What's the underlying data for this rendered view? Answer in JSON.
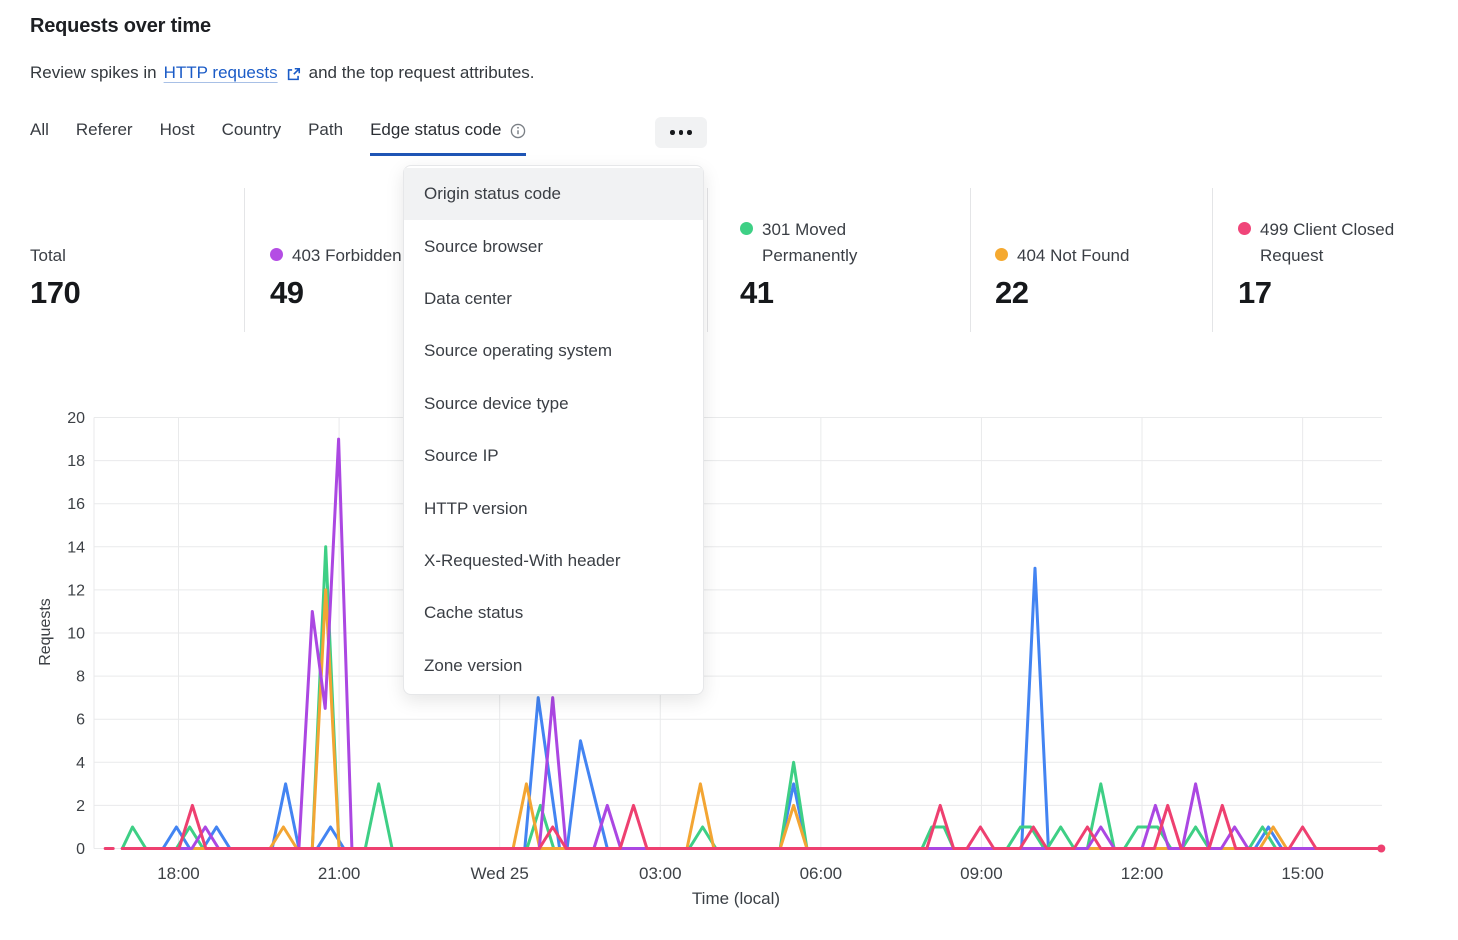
{
  "header": {
    "title": "Requests over time",
    "subtitle_prefix": "Review spikes in",
    "subtitle_link": "HTTP requests",
    "subtitle_suffix": "and the top request attributes."
  },
  "colors": {
    "link_blue": "#1a5bc7",
    "active_tab_underline": "#1f55b5",
    "grid": "#e9eaeb"
  },
  "tabs": {
    "items": [
      {
        "label": "All"
      },
      {
        "label": "Referer"
      },
      {
        "label": "Host"
      },
      {
        "label": "Country"
      },
      {
        "label": "Path"
      },
      {
        "label": "Edge status code"
      }
    ],
    "active": "Edge status code"
  },
  "stats": [
    {
      "label": "Total",
      "value": "170",
      "dot_color": null
    },
    {
      "label": "403 Forbidden",
      "value": "49",
      "dot_color": "#b44de4"
    },
    {
      "label": "301 Moved Permanently",
      "value": "41",
      "dot_color": "#3ed085"
    },
    {
      "label": "404 Not Found",
      "value": "22",
      "dot_color": "#f5a930"
    },
    {
      "label": "499 Client Closed Request",
      "value": "17",
      "dot_color": "#f04579"
    }
  ],
  "dropdown": {
    "highlighted": "Origin status code",
    "items": [
      "Origin status code",
      "Source browser",
      "Data center",
      "Source operating system",
      "Source device type",
      "Source IP",
      "HTTP version",
      "X-Requested-With header",
      "Cache status",
      "Zone version"
    ]
  },
  "chart_data": {
    "type": "line",
    "title": "",
    "xlabel": "Time (local)",
    "ylabel": "Requests",
    "ylim": [
      0,
      20
    ],
    "grid": true,
    "legend_position": "top (stat cards)",
    "y_ticks": [
      0,
      2,
      4,
      6,
      8,
      10,
      12,
      14,
      16,
      18,
      20
    ],
    "x_axis_note": "h = hours after 18:00 of first day; ticks every 3h",
    "x_ticks": [
      {
        "h": 0,
        "label": "18:00"
      },
      {
        "h": 3,
        "label": "21:00"
      },
      {
        "h": 6,
        "label": "Wed 25"
      },
      {
        "h": 9,
        "label": "03:00"
      },
      {
        "h": 12,
        "label": "06:00"
      },
      {
        "h": 15,
        "label": "09:00"
      },
      {
        "h": 18,
        "label": "12:00"
      },
      {
        "h": 21,
        "label": "15:00"
      }
    ],
    "series": [
      {
        "name": "(label hidden by menu)",
        "color": "#4384f2",
        "segments": [
          [
            [
              -1.05,
              0
            ],
            [
              -0.29,
              0
            ],
            [
              -0.04,
              1
            ],
            [
              0.21,
              0
            ],
            [
              0.46,
              0
            ],
            [
              0.71,
              1
            ],
            [
              0.96,
              0
            ],
            [
              1.75,
              0
            ],
            [
              2.0,
              3
            ],
            [
              2.25,
              0
            ],
            [
              2.59,
              0
            ],
            [
              2.84,
              1
            ],
            [
              3.09,
              0
            ],
            [
              6.47,
              0
            ],
            [
              6.72,
              7
            ],
            [
              7.12,
              0
            ],
            [
              7.26,
              0
            ],
            [
              7.51,
              5
            ],
            [
              8.01,
              0
            ],
            [
              11.24,
              0
            ],
            [
              11.49,
              3
            ],
            [
              11.74,
              0
            ],
            [
              15.75,
              0
            ],
            [
              16.0,
              13
            ],
            [
              16.25,
              0
            ],
            [
              20.11,
              0
            ],
            [
              20.36,
              1
            ],
            [
              20.61,
              0
            ],
            [
              22.45,
              0
            ]
          ]
        ]
      },
      {
        "name": "301 Moved Permanently",
        "color": "#3ecf85",
        "segments": [
          [
            [
              -1.05,
              0
            ],
            [
              -0.86,
              1
            ],
            [
              -0.61,
              0
            ],
            [
              -0.04,
              0
            ],
            [
              0.21,
              1
            ],
            [
              0.46,
              0
            ],
            [
              2.5,
              0
            ],
            [
              2.75,
              14
            ],
            [
              3.0,
              0
            ],
            [
              3.49,
              0
            ],
            [
              3.74,
              3
            ],
            [
              3.99,
              0
            ],
            [
              6.51,
              0
            ],
            [
              6.76,
              2
            ],
            [
              7.01,
              0
            ],
            [
              9.54,
              0
            ],
            [
              9.79,
              1
            ],
            [
              10.04,
              0
            ],
            [
              11.24,
              0
            ],
            [
              11.49,
              4
            ],
            [
              11.74,
              0
            ],
            [
              13.89,
              0
            ],
            [
              14.07,
              1
            ],
            [
              14.3,
              1
            ],
            [
              14.48,
              0
            ],
            [
              15.48,
              0
            ],
            [
              15.73,
              1
            ],
            [
              15.92,
              1
            ],
            [
              16.17,
              0
            ],
            [
              16.23,
              0
            ],
            [
              16.48,
              1
            ],
            [
              16.73,
              0
            ],
            [
              16.98,
              0
            ],
            [
              17.23,
              3
            ],
            [
              17.48,
              0
            ],
            [
              17.67,
              0
            ],
            [
              17.92,
              1
            ],
            [
              18.29,
              1
            ],
            [
              18.54,
              0
            ],
            [
              18.75,
              0
            ],
            [
              19.0,
              1
            ],
            [
              19.25,
              0
            ],
            [
              20.0,
              0
            ],
            [
              20.25,
              1
            ],
            [
              20.5,
              0
            ],
            [
              22.45,
              0
            ]
          ]
        ]
      },
      {
        "name": "404 Not Found",
        "color": "#f3a533",
        "segments": [
          [
            [
              -1.05,
              0
            ],
            [
              1.71,
              0
            ],
            [
              1.96,
              1
            ],
            [
              2.21,
              0
            ],
            [
              2.5,
              0
            ],
            [
              2.75,
              12
            ],
            [
              3.0,
              0
            ],
            [
              6.25,
              0
            ],
            [
              6.5,
              3
            ],
            [
              6.75,
              0
            ],
            [
              9.5,
              0
            ],
            [
              9.75,
              3
            ],
            [
              10.0,
              0
            ],
            [
              11.24,
              0
            ],
            [
              11.49,
              2
            ],
            [
              11.74,
              0
            ],
            [
              20.2,
              0
            ],
            [
              20.45,
              1
            ],
            [
              20.7,
              0
            ],
            [
              22.45,
              0
            ]
          ]
        ]
      },
      {
        "name": "403 Forbidden",
        "color": "#ab47e2",
        "segments": [
          [
            [
              -1.05,
              0
            ],
            [
              0.25,
              0
            ],
            [
              0.5,
              1
            ],
            [
              0.75,
              0
            ],
            [
              2.25,
              0
            ],
            [
              2.5,
              11
            ],
            [
              2.74,
              6.5
            ],
            [
              2.99,
              19
            ],
            [
              3.24,
              0
            ],
            [
              6.74,
              0
            ],
            [
              6.99,
              7
            ],
            [
              7.24,
              0
            ],
            [
              7.76,
              0
            ],
            [
              8.01,
              2
            ],
            [
              8.26,
              0
            ],
            [
              16.98,
              0
            ],
            [
              17.23,
              1
            ],
            [
              17.48,
              0
            ],
            [
              18.0,
              0
            ],
            [
              18.25,
              2
            ],
            [
              18.5,
              0
            ],
            [
              18.75,
              0
            ],
            [
              19.0,
              3
            ],
            [
              19.25,
              0
            ],
            [
              19.48,
              0
            ],
            [
              19.73,
              1
            ],
            [
              19.98,
              0
            ],
            [
              22.45,
              0
            ]
          ]
        ]
      },
      {
        "name": "499 Client Closed Request",
        "color": "#ee4070",
        "segments": [
          [
            [
              -1.37,
              0
            ],
            [
              -1.22,
              0
            ]
          ],
          [
            [
              -1.05,
              0
            ],
            [
              0.01,
              0
            ],
            [
              0.26,
              2
            ],
            [
              0.51,
              0
            ],
            [
              6.74,
              0
            ],
            [
              6.99,
              1
            ],
            [
              7.24,
              0
            ],
            [
              8.25,
              0
            ],
            [
              8.5,
              2
            ],
            [
              8.75,
              0
            ],
            [
              13.98,
              0
            ],
            [
              14.23,
              2
            ],
            [
              14.48,
              0
            ],
            [
              14.73,
              0
            ],
            [
              14.98,
              1
            ],
            [
              15.23,
              0
            ],
            [
              15.72,
              0
            ],
            [
              15.97,
              1
            ],
            [
              16.22,
              0
            ],
            [
              16.73,
              0
            ],
            [
              16.98,
              1
            ],
            [
              17.23,
              0
            ],
            [
              18.23,
              0
            ],
            [
              18.48,
              2
            ],
            [
              18.73,
              0
            ],
            [
              19.25,
              0
            ],
            [
              19.5,
              2
            ],
            [
              19.75,
              0
            ],
            [
              20.75,
              0
            ],
            [
              21.0,
              1
            ],
            [
              21.25,
              0
            ],
            [
              22.45,
              0
            ]
          ]
        ]
      }
    ],
    "end_marker": {
      "h": 22.47,
      "v": 0,
      "color": "#ee4070"
    }
  }
}
